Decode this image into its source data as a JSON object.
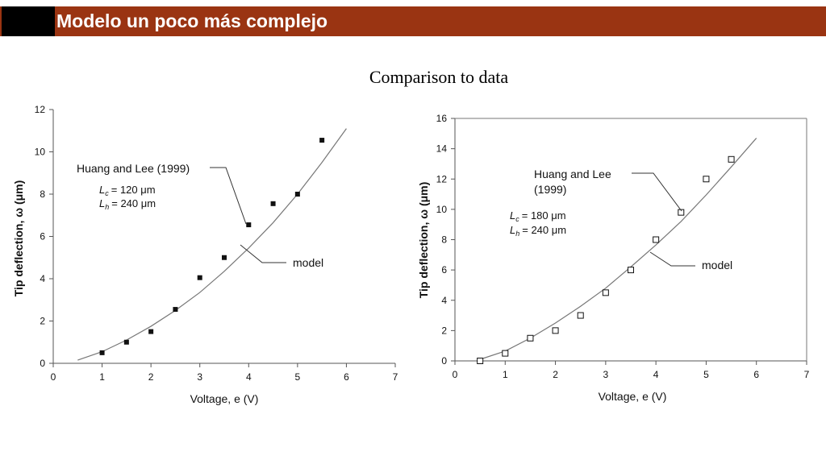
{
  "header": {
    "title": "Modelo un poco más complejo"
  },
  "subtitle": "Comparison to data",
  "chart_data": [
    {
      "type": "scatter",
      "xlabel": "Voltage, e  (V)",
      "ylabel": "Tip deflection, ω (μm)",
      "xlim": [
        0,
        7
      ],
      "ylim": [
        0,
        12
      ],
      "xticks": [
        0,
        1,
        2,
        3,
        4,
        5,
        6,
        7
      ],
      "yticks": [
        0,
        2,
        4,
        6,
        8,
        10,
        12
      ],
      "marker": "filled-square",
      "series": [
        {
          "name": "Huang and Lee (1999)",
          "x": [
            1,
            1.5,
            2,
            2.5,
            3,
            3.5,
            4,
            4.5,
            5,
            5.5
          ],
          "y": [
            0.5,
            1.0,
            1.5,
            2.55,
            4.05,
            5.0,
            6.55,
            7.55,
            8.0,
            10.55
          ]
        },
        {
          "name": "model",
          "x": [
            0.5,
            1,
            1.5,
            2,
            2.5,
            3,
            3.5,
            4,
            4.5,
            5,
            5.5,
            6
          ],
          "y": [
            0.15,
            0.55,
            1.1,
            1.75,
            2.5,
            3.35,
            4.35,
            5.45,
            6.65,
            8.0,
            9.5,
            11.1
          ]
        }
      ],
      "annotations": {
        "lc": "= 120 μm",
        "lh": "= 240 μm"
      }
    },
    {
      "type": "scatter",
      "xlabel": "Voltage, e  (V)",
      "ylabel": "Tip deflection, ω (μm)",
      "xlim": [
        0,
        7
      ],
      "ylim": [
        0,
        16
      ],
      "xticks": [
        0,
        1,
        2,
        3,
        4,
        5,
        6,
        7
      ],
      "yticks": [
        0,
        2,
        4,
        6,
        8,
        10,
        12,
        14,
        16
      ],
      "marker": "open-square",
      "series": [
        {
          "name": "Huang and Lee (1999)",
          "x": [
            0.5,
            1,
            1.5,
            2,
            2.5,
            3,
            3.5,
            4,
            4.5,
            5,
            5.5
          ],
          "y": [
            0.0,
            0.5,
            1.5,
            2.0,
            3.0,
            4.5,
            6.0,
            8.0,
            9.8,
            12.0,
            13.3
          ]
        },
        {
          "name": "model",
          "x": [
            0.5,
            1,
            1.5,
            2,
            2.5,
            3,
            3.5,
            4,
            4.5,
            5,
            5.5,
            6
          ],
          "y": [
            0.1,
            0.65,
            1.5,
            2.5,
            3.6,
            4.8,
            6.2,
            7.65,
            9.2,
            10.95,
            12.8,
            14.7
          ]
        }
      ],
      "annotations": {
        "lc": "= 180 μm",
        "lh": "= 240 μm"
      }
    }
  ],
  "labels": {
    "source": "Huang and Lee (1999)",
    "source_line1": "Huang and Lee",
    "source_line2": "(1999)",
    "model": "model",
    "L": "L",
    "c_sub": "c",
    "h_sub": "h"
  }
}
